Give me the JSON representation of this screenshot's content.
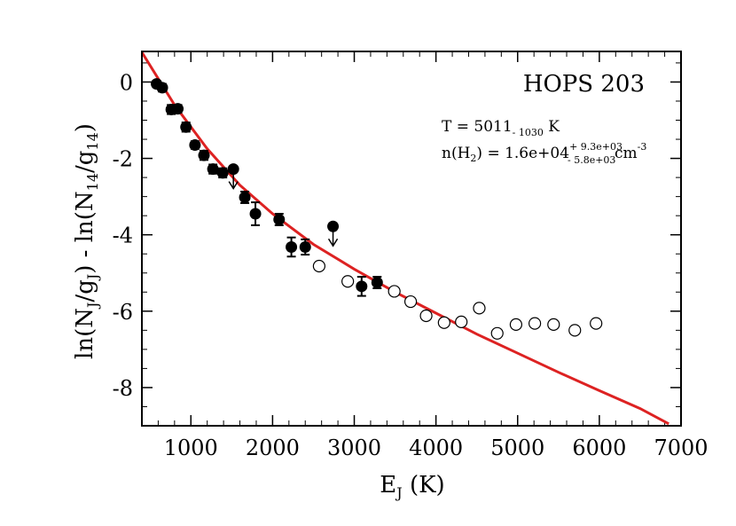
{
  "chart_data": {
    "type": "scatter",
    "title": "",
    "xlabel": {
      "main": "E",
      "sub": "J",
      "tail": " (K)"
    },
    "ylabel": {
      "p1": "ln(N",
      "s1": "J",
      "p2": "/g",
      "s2": "J",
      "p3": ") - ln(N",
      "s3": "14",
      "p4": "/g",
      "s4": "14",
      "p5": ")"
    },
    "xlim": [
      400,
      7000
    ],
    "ylim": [
      -9,
      0.8
    ],
    "x_ticks": [
      1000,
      2000,
      3000,
      4000,
      5000,
      6000,
      7000
    ],
    "y_ticks": [
      0,
      -2,
      -4,
      -6,
      -8
    ],
    "x_tick_labels": [
      "1000",
      "2000",
      "3000",
      "4000",
      "5000",
      "6000",
      "7000"
    ],
    "y_tick_labels": [
      "0",
      "-2",
      "-4",
      "-6",
      "-8"
    ],
    "grid": false,
    "annotations": {
      "source": "HOPS 203",
      "temperature": {
        "prefix": "T = 5011",
        "sub": "- 1030",
        "suffix": "  K"
      },
      "density": {
        "prefix": "n(H",
        "sub": "2",
        "mid": ") =  1.6e+04",
        "sup": "+ 9.3e+03",
        "subsub": "- 5.8e+03",
        "unit": "cm",
        "exp": "-3"
      }
    },
    "series": [
      {
        "marker": "filled-circle",
        "color": "#000000",
        "points": [
          {
            "x": 580,
            "y": -0.05,
            "err": 0.08
          },
          {
            "x": 650,
            "y": -0.15,
            "err": 0.1
          },
          {
            "x": 760,
            "y": -0.72,
            "err": 0.12
          },
          {
            "x": 840,
            "y": -0.7,
            "err": 0.1
          },
          {
            "x": 940,
            "y": -1.18,
            "err": 0.12
          },
          {
            "x": 1050,
            "y": -1.65,
            "err": 0.1
          },
          {
            "x": 1160,
            "y": -1.92,
            "err": 0.12
          },
          {
            "x": 1270,
            "y": -2.28,
            "err": 0.12
          },
          {
            "x": 1390,
            "y": -2.38,
            "err": 0.12
          },
          {
            "x": 1660,
            "y": -3.02,
            "err": 0.15
          },
          {
            "x": 1790,
            "y": -3.45,
            "err": 0.3
          },
          {
            "x": 2080,
            "y": -3.6,
            "err": 0.15
          },
          {
            "x": 2230,
            "y": -4.32,
            "err": 0.25
          },
          {
            "x": 2400,
            "y": -4.32,
            "err": 0.2
          },
          {
            "x": 3090,
            "y": -5.35,
            "err": 0.25
          },
          {
            "x": 3280,
            "y": -5.25,
            "err": 0.15
          }
        ]
      },
      {
        "marker": "upper-limit",
        "color": "#000000",
        "points": [
          {
            "x": 1520,
            "y": -2.28
          },
          {
            "x": 2740,
            "y": -3.78
          }
        ]
      },
      {
        "marker": "open-circle",
        "color": "#000000",
        "points": [
          {
            "x": 2570,
            "y": -4.82
          },
          {
            "x": 2920,
            "y": -5.22
          },
          {
            "x": 3490,
            "y": -5.48
          },
          {
            "x": 3690,
            "y": -5.75
          },
          {
            "x": 3880,
            "y": -6.12
          },
          {
            "x": 4100,
            "y": -6.3
          },
          {
            "x": 4310,
            "y": -6.28
          },
          {
            "x": 4530,
            "y": -5.92
          },
          {
            "x": 4750,
            "y": -6.58
          },
          {
            "x": 4980,
            "y": -6.35
          },
          {
            "x": 5210,
            "y": -6.32
          },
          {
            "x": 5440,
            "y": -6.35
          },
          {
            "x": 5700,
            "y": -6.5
          },
          {
            "x": 5960,
            "y": -6.32
          }
        ]
      },
      {
        "marker": "line",
        "color": "#dd2222",
        "curve": [
          {
            "x": 400,
            "y": 0.78
          },
          {
            "x": 800,
            "y": -0.6
          },
          {
            "x": 1200,
            "y": -1.75
          },
          {
            "x": 1600,
            "y": -2.7
          },
          {
            "x": 2000,
            "y": -3.45
          },
          {
            "x": 2500,
            "y": -4.25
          },
          {
            "x": 3000,
            "y": -4.9
          },
          {
            "x": 3500,
            "y": -5.5
          },
          {
            "x": 4000,
            "y": -6.05
          },
          {
            "x": 4500,
            "y": -6.6
          },
          {
            "x": 5000,
            "y": -7.1
          },
          {
            "x": 5500,
            "y": -7.6
          },
          {
            "x": 6000,
            "y": -8.08
          },
          {
            "x": 6500,
            "y": -8.55
          },
          {
            "x": 6850,
            "y": -8.95
          }
        ]
      }
    ]
  }
}
